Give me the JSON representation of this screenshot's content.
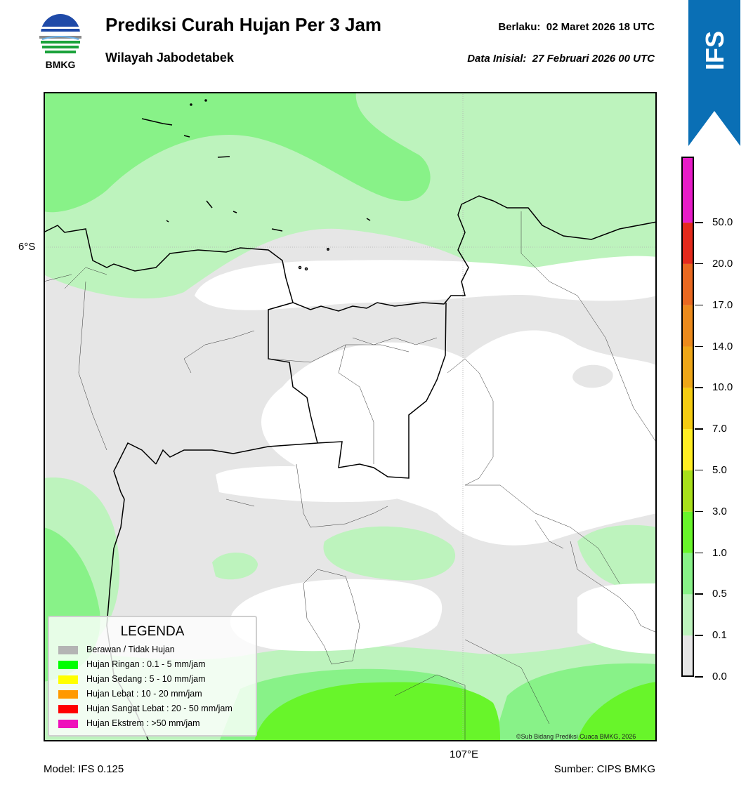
{
  "header": {
    "logo_text": "BMKG",
    "title": "Prediksi Curah Hujan Per 3 Jam",
    "subtitle": "Wilayah Jabodetabek",
    "valid_label": "Berlaku:",
    "valid_value": "02 Maret 2026 18 UTC",
    "init_label": "Data Inisial:",
    "init_value": "27 Februari 2026 00 UTC",
    "badge": "IFS"
  },
  "map": {
    "lat_label": "6°S",
    "lon_label": "107°E",
    "copyright": "©Sub Bidang Prediksi Cuaca BMKG, 2026"
  },
  "legend": {
    "title": "LEGENDA",
    "items": [
      {
        "label": "Berawan / Tidak Hujan",
        "color": "#b4b4b4"
      },
      {
        "label": "Hujan Ringan : 0.1 - 5 mm/jam",
        "color": "#00ff00"
      },
      {
        "label": "Hujan Sedang : 5 - 10 mm/jam",
        "color": "#ffff00"
      },
      {
        "label": "Hujan Lebat : 10 - 20 mm/jam",
        "color": "#ff9900"
      },
      {
        "label": "Hujan Sangat Lebat : 20 - 50 mm/jam",
        "color": "#ff0000"
      },
      {
        "label": "Hujan Ekstrem : >50 mm/jam",
        "color": "#ee11bb"
      }
    ]
  },
  "colorbar": {
    "ticks": [
      "0.0",
      "0.1",
      "0.5",
      "1.0",
      "3.0",
      "5.0",
      "7.0",
      "10.0",
      "14.0",
      "17.0",
      "20.0",
      "50.0"
    ],
    "colors": [
      "#e6e6e6",
      "#bdf3bd",
      "#88f288",
      "#68f52a",
      "#a8e01a",
      "#ffee22",
      "#f5cc11",
      "#eea618",
      "#ec8a1c",
      "#e96820",
      "#e42a1c",
      "#e81cc8"
    ]
  },
  "footer": {
    "model": "Model: IFS 0.125",
    "source": "Sumber: CIPS BMKG"
  }
}
